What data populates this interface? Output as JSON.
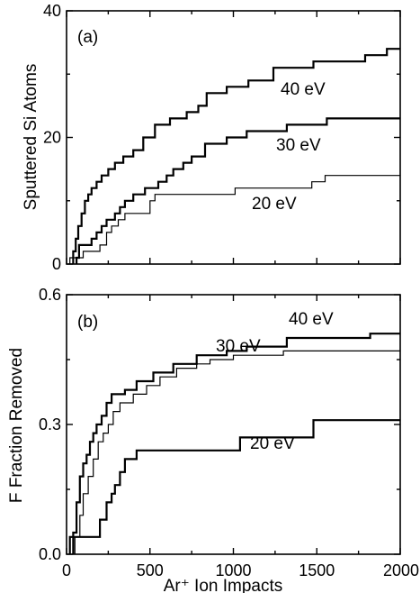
{
  "chart_data": [
    {
      "type": "line",
      "panel": "(a)",
      "ylabel": "Sputtered Si Atoms",
      "xlabel": "",
      "xlim": [
        0,
        2000
      ],
      "ylim": [
        0,
        40
      ],
      "yticks": [
        "0",
        "20",
        "40"
      ],
      "xticks": [],
      "step": true,
      "series": [
        {
          "name": "40 eV",
          "stroke_width": 2.2,
          "points": [
            [
              40,
              0
            ],
            [
              40,
              2
            ],
            [
              55,
              2
            ],
            [
              55,
              4
            ],
            [
              70,
              4
            ],
            [
              70,
              6
            ],
            [
              90,
              6
            ],
            [
              90,
              8
            ],
            [
              110,
              8
            ],
            [
              110,
              10
            ],
            [
              130,
              10
            ],
            [
              130,
              11
            ],
            [
              150,
              11
            ],
            [
              150,
              12
            ],
            [
              180,
              12
            ],
            [
              180,
              13
            ],
            [
              210,
              13
            ],
            [
              210,
              14
            ],
            [
              250,
              14
            ],
            [
              250,
              15
            ],
            [
              290,
              15
            ],
            [
              290,
              16
            ],
            [
              340,
              16
            ],
            [
              340,
              17
            ],
            [
              400,
              17
            ],
            [
              400,
              18
            ],
            [
              460,
              18
            ],
            [
              460,
              20
            ],
            [
              530,
              20
            ],
            [
              530,
              22
            ],
            [
              620,
              22
            ],
            [
              620,
              23
            ],
            [
              720,
              23
            ],
            [
              720,
              24
            ],
            [
              790,
              24
            ],
            [
              790,
              25
            ],
            [
              840,
              25
            ],
            [
              840,
              27
            ],
            [
              960,
              27
            ],
            [
              960,
              28
            ],
            [
              1090,
              28
            ],
            [
              1090,
              29
            ],
            [
              1240,
              29
            ],
            [
              1240,
              31
            ],
            [
              1480,
              31
            ],
            [
              1480,
              32
            ],
            [
              1790,
              32
            ],
            [
              1790,
              33
            ],
            [
              1920,
              33
            ],
            [
              1920,
              34
            ],
            [
              2000,
              34
            ]
          ]
        },
        {
          "name": "30 eV",
          "stroke_width": 2.2,
          "points": [
            [
              60,
              0
            ],
            [
              60,
              1
            ],
            [
              75,
              1
            ],
            [
              75,
              3
            ],
            [
              150,
              3
            ],
            [
              150,
              4
            ],
            [
              180,
              4
            ],
            [
              180,
              5
            ],
            [
              210,
              5
            ],
            [
              210,
              6
            ],
            [
              240,
              6
            ],
            [
              240,
              7
            ],
            [
              290,
              7
            ],
            [
              290,
              8
            ],
            [
              320,
              8
            ],
            [
              320,
              9
            ],
            [
              350,
              9
            ],
            [
              350,
              10
            ],
            [
              400,
              10
            ],
            [
              400,
              11
            ],
            [
              470,
              11
            ],
            [
              470,
              12
            ],
            [
              550,
              12
            ],
            [
              550,
              13
            ],
            [
              600,
              13
            ],
            [
              600,
              14
            ],
            [
              640,
              14
            ],
            [
              640,
              15
            ],
            [
              700,
              15
            ],
            [
              700,
              16
            ],
            [
              750,
              16
            ],
            [
              750,
              17
            ],
            [
              830,
              17
            ],
            [
              830,
              19
            ],
            [
              960,
              19
            ],
            [
              960,
              20
            ],
            [
              1080,
              20
            ],
            [
              1080,
              21
            ],
            [
              1320,
              21
            ],
            [
              1320,
              22
            ],
            [
              1560,
              22
            ],
            [
              1560,
              23
            ],
            [
              2000,
              23
            ]
          ]
        },
        {
          "name": "20 eV",
          "stroke_width": 1.2,
          "points": [
            [
              20,
              0
            ],
            [
              20,
              1
            ],
            [
              100,
              1
            ],
            [
              100,
              2
            ],
            [
              200,
              2
            ],
            [
              200,
              3
            ],
            [
              240,
              3
            ],
            [
              240,
              5
            ],
            [
              270,
              5
            ],
            [
              270,
              6
            ],
            [
              310,
              6
            ],
            [
              310,
              7
            ],
            [
              350,
              7
            ],
            [
              350,
              8
            ],
            [
              500,
              8
            ],
            [
              500,
              10
            ],
            [
              530,
              10
            ],
            [
              530,
              11
            ],
            [
              1010,
              11
            ],
            [
              1010,
              12
            ],
            [
              1470,
              12
            ],
            [
              1470,
              13
            ],
            [
              1550,
              13
            ],
            [
              1550,
              14
            ],
            [
              2000,
              14
            ]
          ]
        }
      ]
    },
    {
      "type": "line",
      "panel": "(b)",
      "ylabel": "F Fraction Removed",
      "xlabel": "Ar⁺ Ion Impacts",
      "xlim": [
        0,
        2000
      ],
      "ylim": [
        0,
        0.6
      ],
      "yticks": [
        "0.0",
        "0.3",
        "0.6"
      ],
      "xticks": [
        "0",
        "500",
        "1000",
        "1500",
        "2000"
      ],
      "step": true,
      "series": [
        {
          "name": "40 eV",
          "stroke_width": 2.2,
          "points": [
            [
              40,
              0
            ],
            [
              40,
              0.05
            ],
            [
              60,
              0.05
            ],
            [
              60,
              0.12
            ],
            [
              80,
              0.12
            ],
            [
              80,
              0.18
            ],
            [
              100,
              0.18
            ],
            [
              100,
              0.21
            ],
            [
              120,
              0.21
            ],
            [
              120,
              0.23
            ],
            [
              140,
              0.23
            ],
            [
              140,
              0.26
            ],
            [
              160,
              0.26
            ],
            [
              160,
              0.28
            ],
            [
              180,
              0.28
            ],
            [
              180,
              0.3
            ],
            [
              210,
              0.3
            ],
            [
              210,
              0.32
            ],
            [
              240,
              0.32
            ],
            [
              240,
              0.35
            ],
            [
              270,
              0.35
            ],
            [
              270,
              0.37
            ],
            [
              350,
              0.37
            ],
            [
              350,
              0.38
            ],
            [
              420,
              0.38
            ],
            [
              420,
              0.4
            ],
            [
              520,
              0.4
            ],
            [
              520,
              0.42
            ],
            [
              640,
              0.42
            ],
            [
              640,
              0.44
            ],
            [
              780,
              0.44
            ],
            [
              780,
              0.46
            ],
            [
              960,
              0.46
            ],
            [
              960,
              0.47
            ],
            [
              1080,
              0.47
            ],
            [
              1080,
              0.48
            ],
            [
              1320,
              0.48
            ],
            [
              1320,
              0.5
            ],
            [
              1820,
              0.5
            ],
            [
              1820,
              0.51
            ],
            [
              2000,
              0.51
            ]
          ]
        },
        {
          "name": "30 eV",
          "stroke_width": 1.2,
          "points": [
            [
              50,
              0
            ],
            [
              50,
              0.04
            ],
            [
              80,
              0.04
            ],
            [
              80,
              0.09
            ],
            [
              100,
              0.09
            ],
            [
              100,
              0.14
            ],
            [
              130,
              0.14
            ],
            [
              130,
              0.18
            ],
            [
              160,
              0.18
            ],
            [
              160,
              0.22
            ],
            [
              190,
              0.22
            ],
            [
              190,
              0.26
            ],
            [
              220,
              0.26
            ],
            [
              220,
              0.28
            ],
            [
              250,
              0.28
            ],
            [
              250,
              0.3
            ],
            [
              280,
              0.3
            ],
            [
              280,
              0.33
            ],
            [
              320,
              0.33
            ],
            [
              320,
              0.35
            ],
            [
              400,
              0.35
            ],
            [
              400,
              0.37
            ],
            [
              480,
              0.37
            ],
            [
              480,
              0.39
            ],
            [
              560,
              0.39
            ],
            [
              560,
              0.41
            ],
            [
              660,
              0.41
            ],
            [
              660,
              0.43
            ],
            [
              780,
              0.43
            ],
            [
              780,
              0.44
            ],
            [
              860,
              0.44
            ],
            [
              860,
              0.45
            ],
            [
              1000,
              0.45
            ],
            [
              1000,
              0.46
            ],
            [
              1300,
              0.46
            ],
            [
              1300,
              0.47
            ],
            [
              2000,
              0.47
            ]
          ]
        },
        {
          "name": "20 eV",
          "stroke_width": 2.2,
          "points": [
            [
              20,
              0
            ],
            [
              20,
              0.04
            ],
            [
              200,
              0.04
            ],
            [
              200,
              0.08
            ],
            [
              240,
              0.08
            ],
            [
              240,
              0.12
            ],
            [
              270,
              0.12
            ],
            [
              270,
              0.14
            ],
            [
              290,
              0.14
            ],
            [
              290,
              0.16
            ],
            [
              320,
              0.16
            ],
            [
              320,
              0.19
            ],
            [
              350,
              0.19
            ],
            [
              350,
              0.22
            ],
            [
              420,
              0.22
            ],
            [
              420,
              0.24
            ],
            [
              1040,
              0.24
            ],
            [
              1040,
              0.27
            ],
            [
              1480,
              0.27
            ],
            [
              1480,
              0.31
            ],
            [
              2000,
              0.31
            ]
          ]
        }
      ]
    }
  ]
}
